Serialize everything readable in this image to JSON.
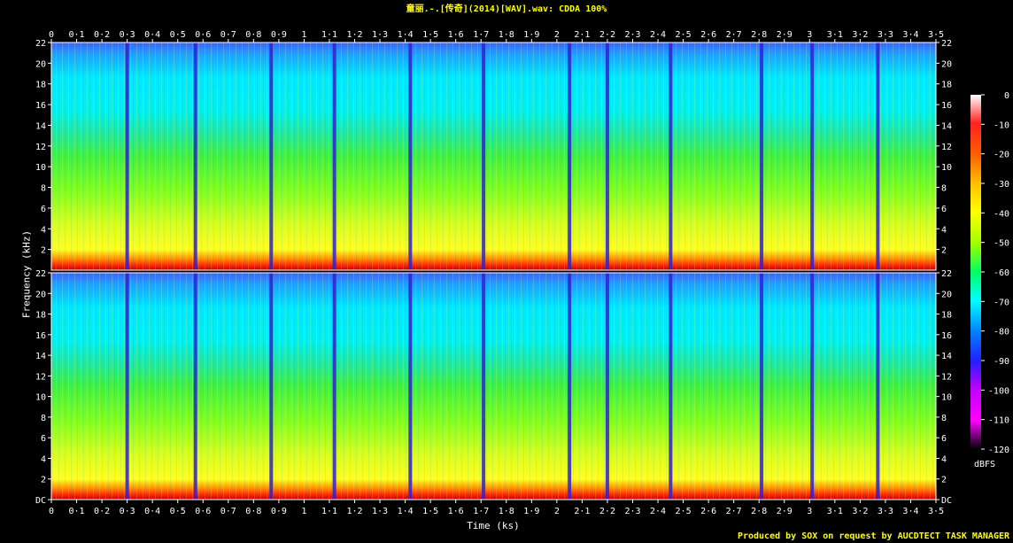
{
  "title": "童丽.-.[传奇](2014)[WAV].wav: CDDA 100%",
  "footer": "Produced by SOX on request by AUCDTECT TASK MANAGER",
  "chart_data": {
    "type": "heatmap",
    "title": "童丽.-.[传奇](2014)[WAV].wav: CDDA 100%",
    "xlabel": "Time (ks)",
    "ylabel": "Frequency (kHz)",
    "xlim": [
      0,
      3.5
    ],
    "x_ticks": [
      "0",
      "0·1",
      "0·2",
      "0·3",
      "0·4",
      "0·5",
      "0·6",
      "0·7",
      "0·8",
      "0·9",
      "1",
      "1·1",
      "1·2",
      "1·3",
      "1·4",
      "1·5",
      "1·6",
      "1·7",
      "1·8",
      "1·9",
      "2",
      "2·1",
      "2·2",
      "2·3",
      "2·4",
      "2·5",
      "2·6",
      "2·7",
      "2·8",
      "2·9",
      "3",
      "3·1",
      "3·2",
      "3·3",
      "3·4",
      "3·5"
    ],
    "ylim": [
      0,
      22
    ],
    "y_ticks": [
      "DC",
      "2",
      "4",
      "6",
      "8",
      "10",
      "12",
      "14",
      "16",
      "18",
      "20",
      "22"
    ],
    "channels": 2,
    "colorbar": {
      "unit": "dBFS",
      "ticks": [
        "0",
        "-10",
        "-20",
        "-30",
        "-40",
        "-50",
        "-60",
        "-70",
        "-80",
        "-90",
        "-100",
        "-110",
        "-120"
      ],
      "colors": [
        "#ffffff",
        "#ff2020",
        "#ff6000",
        "#ffc000",
        "#ffff00",
        "#a0ff00",
        "#00ff60",
        "#00ffff",
        "#0080ff",
        "#2020ff",
        "#c000ff",
        "#ff00ff",
        "#000000"
      ]
    },
    "track_boundaries_ks": [
      0.3,
      0.57,
      0.87,
      1.12,
      1.42,
      1.71,
      2.05,
      2.2,
      2.45,
      2.81,
      3.01,
      3.27
    ]
  }
}
